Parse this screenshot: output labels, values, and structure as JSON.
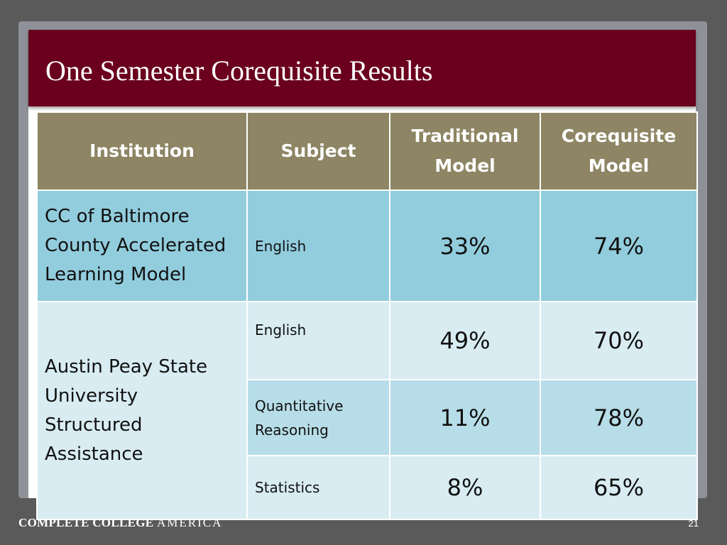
{
  "slide": {
    "title": "One Semester Corequisite Results",
    "page_number": "21"
  },
  "footer": {
    "brand_bold": "COMPLETE COLLEGE",
    "brand_light": "AMERICA"
  },
  "table": {
    "headers": {
      "institution": "Institution",
      "subject": "Subject",
      "traditional_line1": "Traditional",
      "traditional_line2": "Model",
      "corequisite_line1": "Corequisite",
      "corequisite_line2": "Model"
    },
    "rows": [
      {
        "institution_lines": [
          "CC of Baltimore",
          "County Accelerated",
          "Learning Model"
        ],
        "subject": "English",
        "traditional": "33%",
        "corequisite": "74%"
      },
      {
        "institution_lines": [
          "Austin Peay State",
          "University",
          "Structured",
          "Assistance"
        ],
        "subject": "English",
        "traditional": "49%",
        "corequisite": "70%"
      },
      {
        "subject_line1": "Quantitative",
        "subject_line2": "Reasoning",
        "traditional": "11%",
        "corequisite": "78%"
      },
      {
        "subject": "Statistics",
        "traditional": "8%",
        "corequisite": "65%"
      }
    ]
  }
}
